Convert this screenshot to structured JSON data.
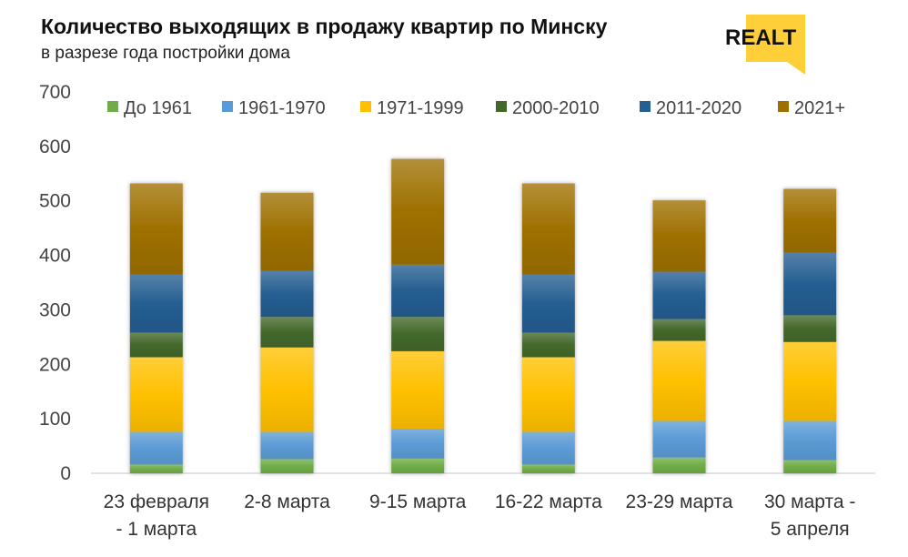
{
  "header": {
    "title": "Количество выходящих в продажу квартир по Минску",
    "subtitle": "в разрезе года постройки дома",
    "logo_text": "REALT"
  },
  "chart_data": {
    "type": "bar",
    "stacked": true,
    "title": "Количество выходящих в продажу квартир по Минску",
    "subtitle": "в разрезе года постройки дома",
    "xlabel": "",
    "ylabel": "",
    "ylim": [
      0,
      700
    ],
    "yticks": [
      0,
      100,
      200,
      300,
      400,
      500,
      600,
      700
    ],
    "grid": false,
    "legend_position": "top",
    "categories": [
      [
        "23 февраля",
        "- 1 марта"
      ],
      [
        "2-8 марта"
      ],
      [
        "9-15 марта"
      ],
      [
        "16-22 марта"
      ],
      [
        "23-29 марта"
      ],
      [
        "30 марта -",
        "5 апреля"
      ]
    ],
    "series": [
      {
        "name": "До 1961",
        "color": "#70ad47",
        "values": [
          16,
          26,
          27,
          16,
          29,
          24
        ]
      },
      {
        "name": "1961-1970",
        "color": "#5b9bd5",
        "values": [
          60,
          50,
          55,
          60,
          67,
          72
        ]
      },
      {
        "name": "1971-1999",
        "color": "#ffc000",
        "values": [
          137,
          155,
          142,
          137,
          147,
          145
        ]
      },
      {
        "name": "2000-2010",
        "color": "#43682b",
        "values": [
          45,
          56,
          63,
          45,
          40,
          49
        ]
      },
      {
        "name": "2011-2020",
        "color": "#255e91",
        "values": [
          107,
          84,
          96,
          107,
          87,
          115
        ]
      },
      {
        "name": "2021+",
        "color": "#9e7000",
        "values": [
          167,
          144,
          194,
          167,
          131,
          117
        ]
      }
    ]
  }
}
